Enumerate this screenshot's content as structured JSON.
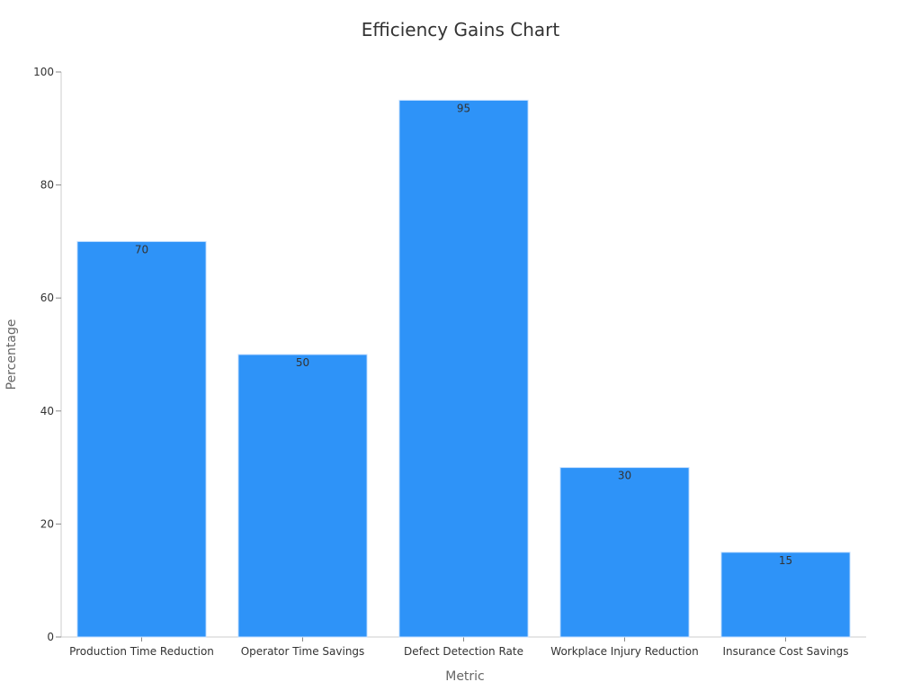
{
  "chart_data": {
    "type": "bar",
    "title": "Efficiency Gains Chart",
    "xlabel": "Metric",
    "ylabel": "Percentage",
    "categories": [
      "Production Time Reduction",
      "Operator Time Savings",
      "Defect Detection Rate",
      "Workplace Injury Reduction",
      "Insurance Cost Savings"
    ],
    "values": [
      70,
      50,
      95,
      30,
      15
    ],
    "ylim": [
      0,
      100
    ],
    "yticks": [
      0,
      20,
      40,
      60,
      80,
      100
    ],
    "grid": false,
    "legend": "none",
    "bar_color": "#2e93f8",
    "show_data_labels": true
  }
}
